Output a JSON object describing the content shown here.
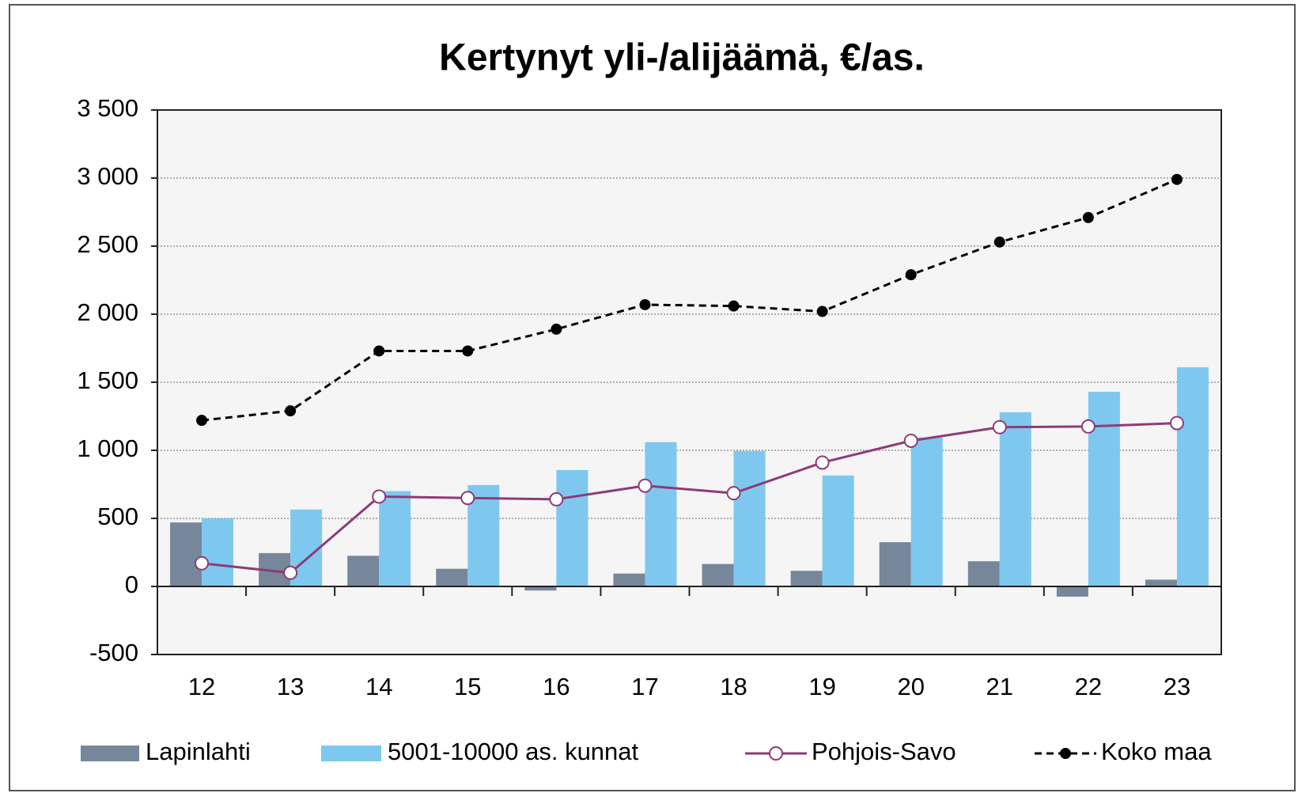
{
  "chart_data": {
    "type": "bar",
    "title": "Kertynyt yli-/alijäämä, €/as.",
    "categories": [
      "12",
      "13",
      "14",
      "15",
      "16",
      "17",
      "18",
      "19",
      "20",
      "21",
      "22",
      "23"
    ],
    "series": [
      {
        "name": "Lapinlahti",
        "type": "bar",
        "color": "#76879c",
        "values": [
          470,
          245,
          225,
          130,
          -30,
          95,
          165,
          115,
          325,
          185,
          -75,
          50
        ]
      },
      {
        "name": "5001-10000 as. kunnat",
        "type": "bar",
        "color": "#7ec8f0",
        "values": [
          500,
          565,
          700,
          745,
          855,
          1060,
          995,
          815,
          1095,
          1280,
          1430,
          1610
        ]
      },
      {
        "name": "Pohjois-Savo",
        "type": "line",
        "color": "#8e3b78",
        "marker": "open",
        "dashed": false,
        "values": [
          170,
          100,
          660,
          650,
          640,
          740,
          685,
          910,
          1070,
          1170,
          1175,
          1200
        ]
      },
      {
        "name": "Koko maa",
        "type": "line",
        "color": "#000000",
        "marker": "filled",
        "dashed": true,
        "values": [
          1220,
          1290,
          1730,
          1730,
          1890,
          2070,
          2060,
          2020,
          2290,
          2530,
          2710,
          2990
        ]
      }
    ],
    "ylim": [
      -500,
      3500
    ],
    "yticks": [
      -500,
      0,
      500,
      {
        "value": 1000,
        "label": "1 000"
      },
      {
        "value": 1500,
        "label": "1 500"
      },
      {
        "value": 2000,
        "label": "2 000"
      },
      {
        "value": 2500,
        "label": "2 500"
      },
      {
        "value": 3000,
        "label": "3 000"
      },
      {
        "value": 3500,
        "label": "3 500"
      }
    ],
    "grid": true,
    "legend": "bottom"
  }
}
